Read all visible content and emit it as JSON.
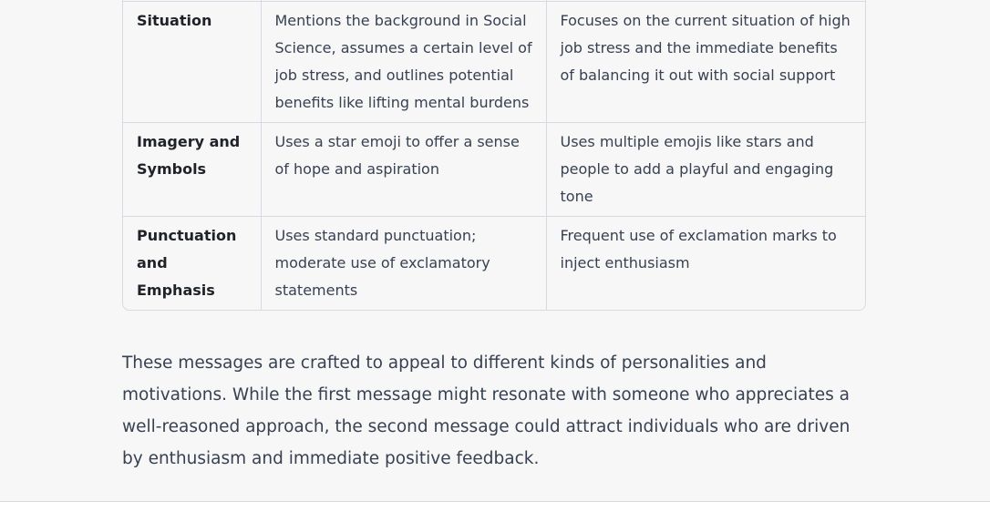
{
  "comparison_table": {
    "rows": [
      {
        "label": "Situation",
        "first": "Mentions the background in Social Science, assumes a certain level of job stress, and outlines potential benefits like lifting mental burdens",
        "second": "Focuses on the current situation of high job stress and the immediate benefits of balancing it out with social support"
      },
      {
        "label": "Imagery and Symbols",
        "first": "Uses a star emoji to offer a sense of hope and aspiration",
        "second": "Uses multiple emojis like stars and people to add a playful and engaging tone"
      },
      {
        "label": "Punctuation and Emphasis",
        "first": "Uses standard punctuation; moderate use of exclamatory statements",
        "second": "Frequent use of exclamation marks to inject enthusiasm"
      }
    ]
  },
  "summary": {
    "text": "These messages are crafted to appeal to different kinds of personalities and motivations. While the first message might resonate with someone who appreciates a well-reasoned approach, the second message could attract individuals who are driven by enthusiasm and immediate positive feedback."
  }
}
